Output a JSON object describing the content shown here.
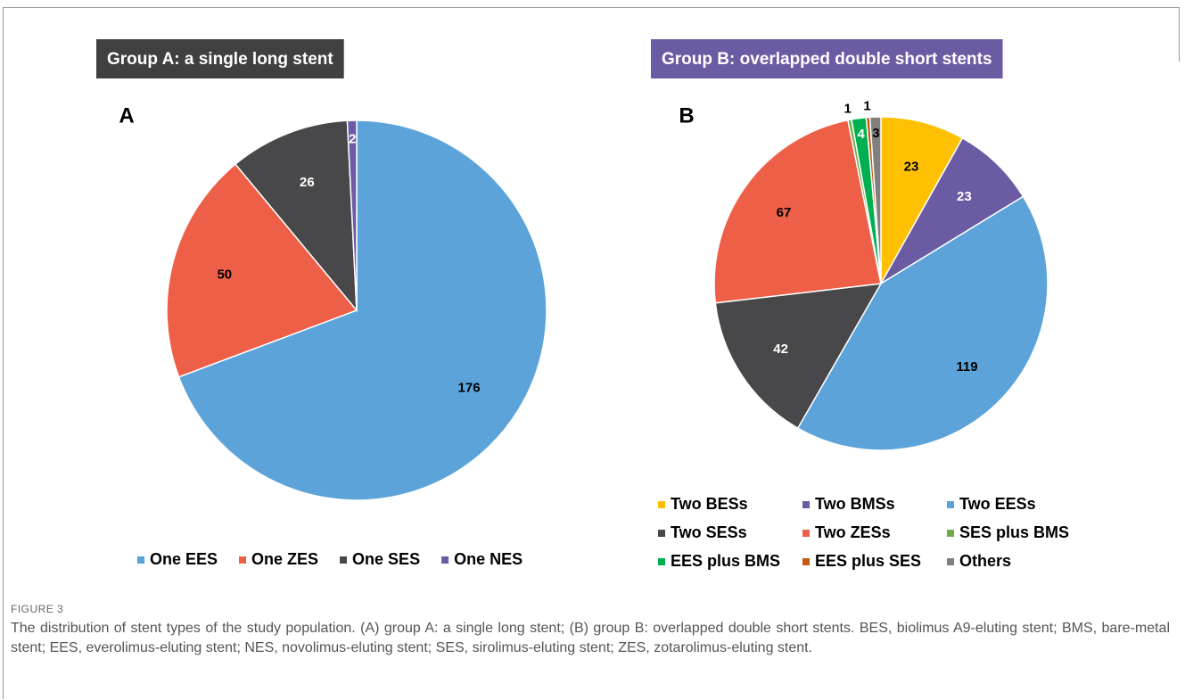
{
  "chart_data": [
    {
      "type": "pie",
      "title": "Group A: a single long stent",
      "panel_label": "A",
      "title_color": "#404040",
      "categories": [
        "One EES",
        "One ZES",
        "One SES",
        "One NES"
      ],
      "values": [
        176,
        50,
        26,
        2
      ],
      "colors": [
        "#5ba3d9",
        "#ee5f47",
        "#48484a",
        "#6e5aa6"
      ],
      "legend": "bottom"
    },
    {
      "type": "pie",
      "title": "Group B: overlapped double short stents",
      "panel_label": "B",
      "title_color": "#6b5ba3",
      "categories": [
        "Two BESs",
        "Two BMSs",
        "Two EESs",
        "Two SESs",
        "Two ZESs",
        "SES plus BMS",
        "EES plus BMS",
        "EES plus SES",
        "Others"
      ],
      "values": [
        23,
        23,
        119,
        42,
        67,
        1,
        4,
        1,
        3
      ],
      "colors": [
        "#fec000",
        "#6b5ba3",
        "#5ba3d9",
        "#48484a",
        "#ee5f47",
        "#70ad47",
        "#00b050",
        "#c55a11",
        "#808080"
      ],
      "legend": "bottom"
    }
  ],
  "figure_label": "FIGURE 3",
  "caption": "The distribution of stent types of the study population. (A) group A: a single long stent; (B) group B: overlapped double short stents. BES, biolimus A9-eluting stent; BMS, bare-metal stent; EES, everolimus-eluting stent; NES, novolimus-eluting stent; SES, sirolimus-eluting stent; ZES, zotarolimus-eluting stent."
}
